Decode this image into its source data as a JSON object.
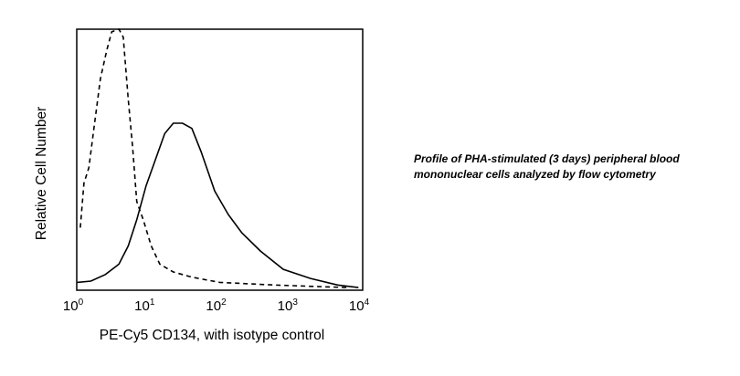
{
  "chart_data": {
    "type": "line",
    "title": "",
    "xlabel": "PE-Cy5 CD134, with isotype control",
    "ylabel": "Relative Cell Number",
    "xscale": "log",
    "xlim": [
      1,
      10000
    ],
    "ylim": [
      0,
      100
    ],
    "grid": false,
    "x_ticks": [
      {
        "base": "10",
        "exp": "0",
        "value": 1
      },
      {
        "base": "10",
        "exp": "1",
        "value": 10
      },
      {
        "base": "10",
        "exp": "2",
        "value": 100
      },
      {
        "base": "10",
        "exp": "3",
        "value": 1000
      },
      {
        "base": "10",
        "exp": "4",
        "value": 10000
      }
    ],
    "series": [
      {
        "name": "isotype control",
        "style": "dashed",
        "x": [
          1.12,
          1.26,
          1.48,
          1.74,
          2.14,
          2.63,
          3.09,
          3.89,
          4.47,
          5.25,
          6.03,
          6.92,
          8.51,
          11,
          14.5,
          22.4,
          40.7,
          100,
          575,
          6026
        ],
        "y": [
          24,
          41,
          47,
          62,
          81,
          92,
          99,
          100,
          97,
          73,
          55,
          34,
          27,
          17,
          10,
          7,
          5,
          3,
          2,
          1
        ]
      },
      {
        "name": "PE-Cy5 CD134",
        "style": "solid",
        "x": [
          1.02,
          1.58,
          2.51,
          3.89,
          5.25,
          6.92,
          9.33,
          12.6,
          17,
          22.4,
          30.2,
          40.7,
          55,
          85,
          132,
          204,
          372,
          776,
          1862,
          4467,
          8710
        ],
        "y": [
          3,
          3.5,
          6,
          10,
          17,
          27,
          40,
          50,
          60,
          64,
          64,
          62,
          53,
          38,
          29,
          22,
          15,
          8,
          4.5,
          2,
          1
        ]
      }
    ],
    "annotation": "Profile of PHA-stimulated (3 days) peripheral blood mononuclear cells analyzed by flow cytometry"
  }
}
